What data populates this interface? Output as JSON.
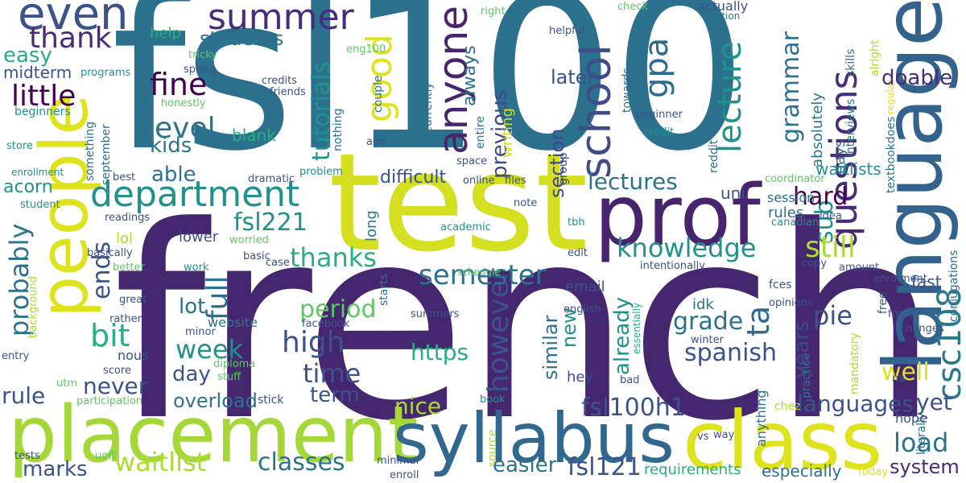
{
  "words": {
    "french": "french",
    "fsl100": "fsl100",
    "test": "test",
    "placement": "placement",
    "class": "class",
    "syllabus": "syllabus",
    "prof": "prof",
    "language": "language",
    "people": "people",
    "even": "even",
    "summer": "summer",
    "thank": "thank",
    "department": "department",
    "good": "good",
    "anyone": "anyone",
    "school": "school",
    "questions": "questions",
    "fine": "fine",
    "little": "little",
    "level": "level",
    "kids": "kids",
    "students": "students",
    "easy": "easy",
    "midterm": "midterm",
    "help": "help",
    "tutorials": "tutorials",
    "campus": "campus",
    "always": "always",
    "later": "later",
    "doable": "doable",
    "gpa": "gpa",
    "lecture": "lecture",
    "grammar": "grammar",
    "able": "able",
    "fsl221": "fsl221",
    "probably": "probably",
    "thanks": "thanks",
    "semester": "semester",
    "knowledge": "knowledge",
    "lectures": "lectures",
    "hard": "hard",
    "sub": "sub",
    "still": "still",
    "full": "full",
    "ends": "ends",
    "bit": "bit",
    "week": "week",
    "high": "high",
    "time": "time",
    "period": "period",
    "lot": "lot",
    "day": "day",
    "https": "https",
    "however": "however",
    "new": "new",
    "grade": "grade",
    "spanish": "spanish",
    "ta": "ta",
    "pie": "pie",
    "years": "years",
    "csc108": "csc108",
    "well": "well",
    "never": "never",
    "rule": "rule",
    "term": "term",
    "overload": "overload",
    "nice": "nice",
    "similar": "similar",
    "fsl100h1": "fsl100h1",
    "languages": "languages",
    "yet": "yet",
    "load": "load",
    "waitlist": "waitlist",
    "classes": "classes",
    "marks": "marks",
    "easier": "easier",
    "fsl121": "fsl121",
    "system": "system",
    "especially": "especially",
    "requirements": "requirements",
    "already": "already",
    "previous": "previous",
    "section": "section",
    "writing": "writing",
    "difficult": "difficult",
    "acorn": "acorn",
    "blank": "blank",
    "waitlists": "waitlists",
    "uni": "uni",
    "rules": "rules",
    "session": "session",
    "email": "email",
    "website": "website",
    "idk": "idk",
    "hey": "hey",
    "fast": "fast",
    "days": "days",
    "absolutely": "absolutely",
    "lower": "lower",
    "lol": "lol",
    "eng100": "eng100",
    "right": "right",
    "check": "check",
    "actually": "actually",
    "edition": "edition",
    "helpful": "helpful",
    "skills": "skills",
    "alright": "alright",
    "tricky": "tricky",
    "spring": "spring",
    "programs": "programs",
    "credits": "credits",
    "friends": "friends",
    "honestly": "honestly",
    "couple": "couple",
    "currently": "currently",
    "towards": "towards",
    "beginner": "beginner",
    "credit": "credit",
    "beginners": "beginners",
    "store": "store",
    "something": "something",
    "september": "september",
    "enrollment": "enrollment",
    "nothing": "nothing",
    "ago": "ago",
    "entire": "entire",
    "space": "space",
    "group": "group",
    "reddit": "reddit",
    "interviews": "interviews",
    "regular": "regular",
    "textbookdoes": "textbookdoes",
    "best": "best",
    "dramatic": "dramatic",
    "problem": "problem",
    "online": "online",
    "files": "files",
    "coordinator": "coordinator",
    "student": "student",
    "readings": "readings",
    "note": "note",
    "long": "long",
    "academic": "academic",
    "tbh": "tbh",
    "canadian": "canadian",
    "idea": "idea",
    "conjugations": "conjugations",
    "worried": "worried",
    "basically": "basically",
    "basic": "basic",
    "edit": "edit",
    "intentionally": "intentionally",
    "copy": "copy",
    "amount": "amount",
    "better": "better",
    "work": "work",
    "case": "case",
    "schedule": "schedule",
    "starts": "starts",
    "background": "background",
    "enrolment": "enrolment",
    "great": "great",
    "rather": "rather",
    "summers": "summers",
    "english": "english",
    "fces": "fces",
    "opinions": "opinions",
    "free": "free",
    "frea97": "frea97",
    "minor": "minor",
    "facebook": "facebook",
    "essentially": "essentially",
    "practice": "practice",
    "changes": "changes",
    "entry": "entry",
    "nous": "nous",
    "winter": "winter",
    "score": "score",
    "diploma": "diploma",
    "bad": "bad",
    "anything": "anything",
    "mandatory": "mandatory",
    "na": "na",
    "stuff": "stuff",
    "utm": "utm",
    "participation": "participation",
    "stick": "stick",
    "book": "book",
    "chez": "chez",
    "hope": "hope",
    "literally": "literally",
    "vs": "vs",
    "way": "way",
    "tests": "tests",
    "uoft": "uoft",
    "minimal": "minimal",
    "enroll": "enroll",
    "source": "source",
    "today": "today"
  },
  "palette": [
    "#440154",
    "#472c7a",
    "#3b528b",
    "#2c728e",
    "#21918c",
    "#28ae80",
    "#5ec962",
    "#addc30",
    "#e1e418"
  ]
}
